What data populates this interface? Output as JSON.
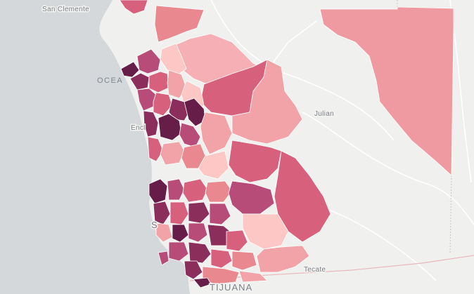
{
  "map": {
    "labels": {
      "san_clemente": "San Clemente",
      "ocean": "OCEA",
      "julian": "Julian",
      "encinitas": "Encl",
      "tecate": "Tecate",
      "tijuana": "TIJUANA",
      "san_diego": "S"
    },
    "colors": {
      "ocean": "#d4d8db",
      "land": "#f0f0ee",
      "choropleth_1": "#fcc7c4",
      "choropleth_2": "#f2a3a8",
      "choropleth_3": "#e9898f",
      "choropleth_4": "#d7607d",
      "choropleth_5": "#b84c78",
      "choropleth_6": "#8c2e5c",
      "choropleth_7": "#661d47",
      "border": "#e4b7b9"
    }
  }
}
